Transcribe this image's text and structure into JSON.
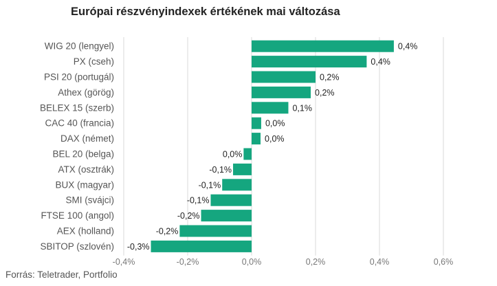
{
  "chart_data": {
    "type": "bar",
    "orientation": "horizontal",
    "title": "Európai részvényindexek értékének mai változása",
    "categories": [
      "WIG 20 (lengyel)",
      "PX (cseh)",
      "PSI 20 (portugál)",
      "Athex (görög)",
      "BELEX 15 (szerb)",
      "CAC 40 (francia)",
      "DAX (német)",
      "BEL 20 (belga)",
      "ATX (osztrák)",
      "BUX (magyar)",
      "SMI (svájci)",
      "FTSE 100 (angol)",
      "AEX (holland)",
      "SBITOP (szlovén)"
    ],
    "values": [
      0.445,
      0.36,
      0.2,
      0.185,
      0.115,
      0.03,
      0.028,
      -0.025,
      -0.058,
      -0.092,
      -0.128,
      -0.158,
      -0.225,
      -0.315
    ],
    "data_labels": [
      "0,4%",
      "0,4%",
      "0,2%",
      "0,2%",
      "0,1%",
      "0,0%",
      "0,0%",
      "0,0%",
      "-0,1%",
      "-0,1%",
      "-0,1%",
      "-0,2%",
      "-0,2%",
      "-0,3%"
    ],
    "xlim": [
      -0.4,
      0.6
    ],
    "xticks": [
      -0.4,
      -0.2,
      0.0,
      0.2,
      0.4,
      0.6
    ],
    "xtick_labels": [
      "-0,4%",
      "-0,2%",
      "0,0%",
      "0,2%",
      "0,4%",
      "0,6%"
    ],
    "xlabel": "",
    "ylabel": "",
    "grid": "vertical",
    "legend": "none",
    "bar_color": "#15a67f",
    "grid_color": "#d9d9d9"
  },
  "source": "Forrás: Teletrader, Portfolio"
}
